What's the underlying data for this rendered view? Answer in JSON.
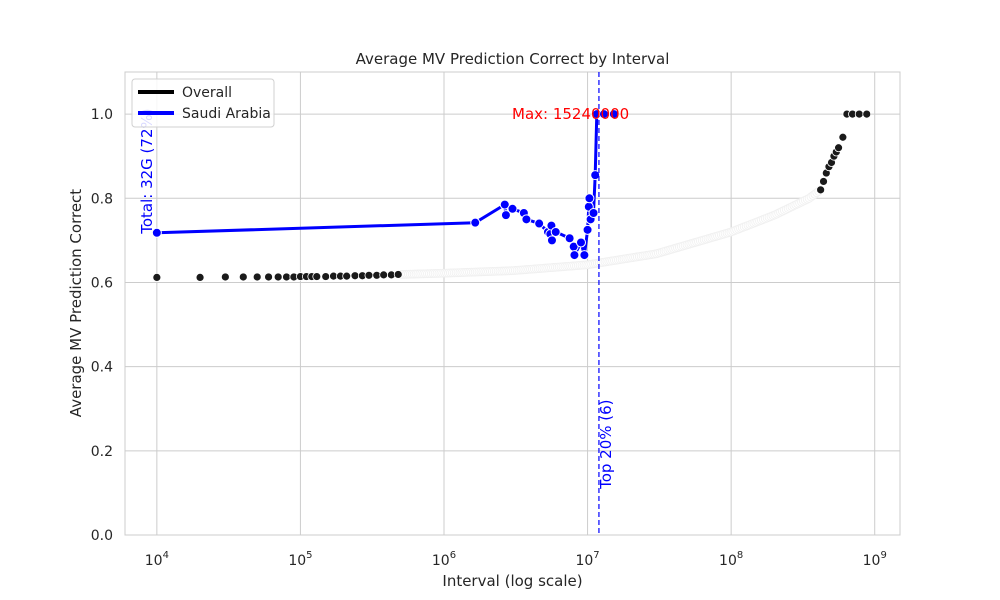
{
  "chart_data": {
    "type": "line",
    "title": "Average MV Prediction Correct by Interval",
    "xlabel": "Interval (log scale)",
    "ylabel": "Average MV Prediction Correct",
    "x_scale": "log",
    "xlim": [
      6000,
      1500000000
    ],
    "ylim": [
      0,
      1.1
    ],
    "x_ticks": [
      10000,
      100000,
      1000000,
      10000000,
      100000000,
      1000000000
    ],
    "x_tick_base": "10",
    "x_tick_exponents": [
      "4",
      "5",
      "6",
      "7",
      "8",
      "9"
    ],
    "y_ticks": [
      0.0,
      0.2,
      0.4,
      0.6,
      0.8,
      1.0
    ],
    "y_tick_labels": [
      "0.0",
      "0.2",
      "0.4",
      "0.6",
      "0.8",
      "1.0"
    ],
    "grid": true,
    "legend_position": "top-left",
    "series": [
      {
        "name": "Overall",
        "color": "#000000",
        "marker_color": "#1a1a1a",
        "dense_segment": {
          "from": 500000,
          "to": 420000000,
          "curve": [
            [
              500000,
              0.619
            ],
            [
              1000000,
              0.622
            ],
            [
              3000000,
              0.628
            ],
            [
              10000000,
              0.642
            ],
            [
              30000000,
              0.668
            ],
            [
              100000000,
              0.72
            ],
            [
              200000000,
              0.76
            ],
            [
              350000000,
              0.8
            ],
            [
              420000000,
              0.82
            ]
          ]
        },
        "points": [
          [
            10000,
            0.612
          ],
          [
            20000,
            0.612
          ],
          [
            30000,
            0.613
          ],
          [
            40000,
            0.613
          ],
          [
            50000,
            0.613
          ],
          [
            60000,
            0.613
          ],
          [
            70000,
            0.613
          ],
          [
            80000,
            0.613
          ],
          [
            90000,
            0.613
          ],
          [
            100000,
            0.614
          ],
          [
            110000,
            0.614
          ],
          [
            120000,
            0.614
          ],
          [
            130000,
            0.614
          ],
          [
            150000,
            0.614
          ],
          [
            170000,
            0.615
          ],
          [
            190000,
            0.615
          ],
          [
            210000,
            0.615
          ],
          [
            240000,
            0.616
          ],
          [
            270000,
            0.616
          ],
          [
            300000,
            0.617
          ],
          [
            340000,
            0.617
          ],
          [
            380000,
            0.618
          ],
          [
            430000,
            0.618
          ],
          [
            480000,
            0.619
          ],
          [
            420000000,
            0.82
          ],
          [
            440000000,
            0.84
          ],
          [
            460000000,
            0.86
          ],
          [
            480000000,
            0.875
          ],
          [
            500000000,
            0.885
          ],
          [
            520000000,
            0.9
          ],
          [
            540000000,
            0.91
          ],
          [
            560000000,
            0.92
          ],
          [
            600000000,
            0.945
          ],
          [
            640000000,
            1.0
          ],
          [
            700000000,
            1.0
          ],
          [
            780000000,
            1.0
          ],
          [
            880000000,
            1.0
          ]
        ]
      },
      {
        "name": "Saudi Arabia",
        "color": "#0000ff",
        "points": [
          [
            10000,
            0.718
          ],
          [
            1650000,
            0.742
          ],
          [
            2650000,
            0.785
          ],
          [
            2700000,
            0.76
          ],
          [
            3000000,
            0.775
          ],
          [
            3600000,
            0.765
          ],
          [
            3750000,
            0.75
          ],
          [
            4600000,
            0.74
          ],
          [
            5300000,
            0.72
          ],
          [
            5500000,
            0.715
          ],
          [
            5600000,
            0.735
          ],
          [
            5650000,
            0.7
          ],
          [
            6000000,
            0.72
          ],
          [
            7500000,
            0.705
          ],
          [
            8000000,
            0.685
          ],
          [
            8100000,
            0.665
          ],
          [
            9000000,
            0.695
          ],
          [
            9500000,
            0.665
          ],
          [
            10000000,
            0.725
          ],
          [
            10200000,
            0.78
          ],
          [
            10300000,
            0.8
          ],
          [
            10500000,
            0.75
          ],
          [
            11000000,
            0.765
          ],
          [
            11300000,
            0.855
          ],
          [
            11600000,
            1.0
          ],
          [
            13000000,
            1.0
          ],
          [
            15240000,
            1.0
          ]
        ]
      }
    ],
    "annotations": [
      {
        "text": "Max: 15240000",
        "x": 15240000,
        "y": 1.0,
        "color": "#ff0000"
      },
      {
        "text": "Total: 32G (72%)",
        "x": 10000,
        "y": 0.718,
        "color": "#0000ff",
        "rotation": -90
      },
      {
        "text": "Top 20% (6)",
        "x": 12000000,
        "y": 0.1,
        "color": "#0000ff",
        "rotation": -90
      }
    ],
    "vline": {
      "x": 12000000,
      "color": "#0000ff",
      "style": "dashed"
    }
  }
}
